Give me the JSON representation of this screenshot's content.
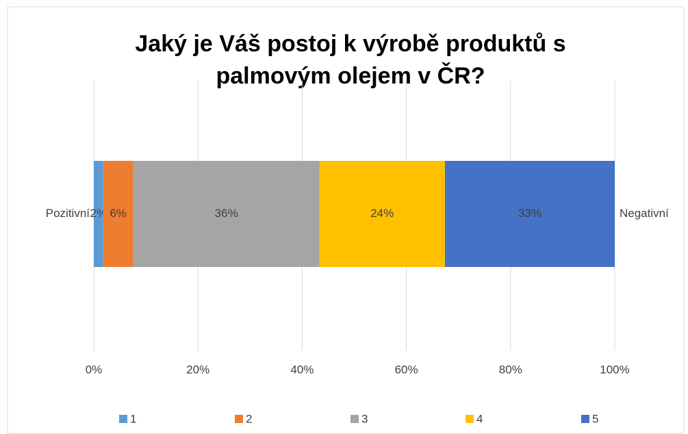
{
  "chart_data": {
    "type": "stacked_bar_horizontal",
    "title": [
      "Jaký je Váš postoj k výrobě produktů s",
      "palmovým olejem v ČR?"
    ],
    "annotations": [
      "Pozitivní",
      "Negativní"
    ],
    "series": [
      {
        "name": "1",
        "color": "#5b9bd5",
        "values": [
          1.8
        ],
        "value_labels": [
          "2%"
        ]
      },
      {
        "name": "2",
        "color": "#ed7d31",
        "values": [
          5.8
        ],
        "value_labels": [
          "6%"
        ]
      },
      {
        "name": "3",
        "color": "#a5a5a5",
        "values": [
          35.7
        ],
        "value_labels": [
          "36%"
        ]
      },
      {
        "name": "4",
        "color": "#ffc000",
        "values": [
          24.1
        ],
        "value_labels": [
          "24%"
        ]
      },
      {
        "name": "5",
        "color": "#4472c4",
        "values": [
          32.6
        ],
        "value_labels": [
          "33%"
        ]
      }
    ],
    "xlim": [
      0,
      100
    ],
    "xticks": [
      {
        "value": 0,
        "label": "0%"
      },
      {
        "value": 20,
        "label": "20%"
      },
      {
        "value": 40,
        "label": "40%"
      },
      {
        "value": 60,
        "label": "60%"
      },
      {
        "value": 80,
        "label": "80%"
      },
      {
        "value": 100,
        "label": "100%"
      }
    ],
    "grid": true,
    "legend": "bottom"
  }
}
